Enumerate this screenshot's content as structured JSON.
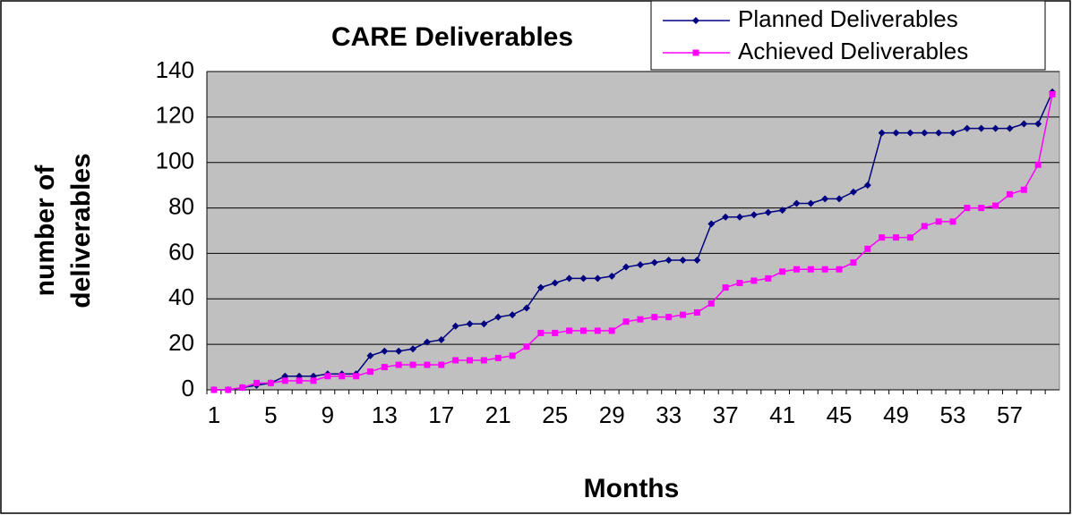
{
  "chart_data": {
    "type": "line",
    "title": "CARE Deliverables",
    "x_label": "Months",
    "y_label": [
      "number of",
      "deliverables"
    ],
    "categories": [
      "1",
      null,
      null,
      null,
      "5",
      null,
      null,
      null,
      "9",
      null,
      null,
      null,
      "13",
      null,
      null,
      null,
      "17",
      null,
      null,
      null,
      "21",
      null,
      null,
      null,
      "25",
      null,
      null,
      null,
      "29",
      null,
      null,
      null,
      "33",
      null,
      null,
      null,
      "37",
      null,
      null,
      null,
      "41",
      null,
      null,
      null,
      "45",
      null,
      null,
      null,
      "49",
      null,
      null,
      null,
      "53",
      null,
      null,
      null,
      "57",
      null,
      null,
      null
    ],
    "series": [
      {
        "name": "Planned Deliverables",
        "color": "#000080",
        "marker": "diamond",
        "values": [
          0,
          0,
          1,
          2,
          3,
          6,
          6,
          6,
          7,
          7,
          7,
          15,
          17,
          17,
          18,
          21,
          22,
          28,
          29,
          29,
          32,
          33,
          36,
          45,
          47,
          49,
          49,
          49,
          50,
          54,
          55,
          56,
          57,
          57,
          57,
          73,
          76,
          76,
          77,
          78,
          79,
          82,
          82,
          84,
          84,
          87,
          90,
          113,
          113,
          113,
          113,
          113,
          113,
          115,
          115,
          115,
          115,
          117,
          117,
          131
        ]
      },
      {
        "name": "Achieved Deliverables",
        "color": "#ff00ff",
        "marker": "square",
        "values": [
          0,
          0,
          1,
          3,
          3,
          4,
          4,
          4,
          6,
          6,
          6,
          8,
          10,
          11,
          11,
          11,
          11,
          13,
          13,
          13,
          14,
          15,
          19,
          25,
          25,
          26,
          26,
          26,
          26,
          30,
          31,
          32,
          32,
          33,
          34,
          38,
          45,
          47,
          48,
          49,
          52,
          53,
          53,
          53,
          53,
          56,
          62,
          67,
          67,
          67,
          72,
          74,
          74,
          80,
          80,
          81,
          86,
          88,
          99,
          130
        ]
      }
    ],
    "ylim": [
      0,
      140
    ],
    "yticks": [
      0,
      20,
      40,
      60,
      80,
      100,
      120,
      140
    ],
    "grid": true,
    "plot_background": "#c0c0c0",
    "legend": "top-right"
  }
}
